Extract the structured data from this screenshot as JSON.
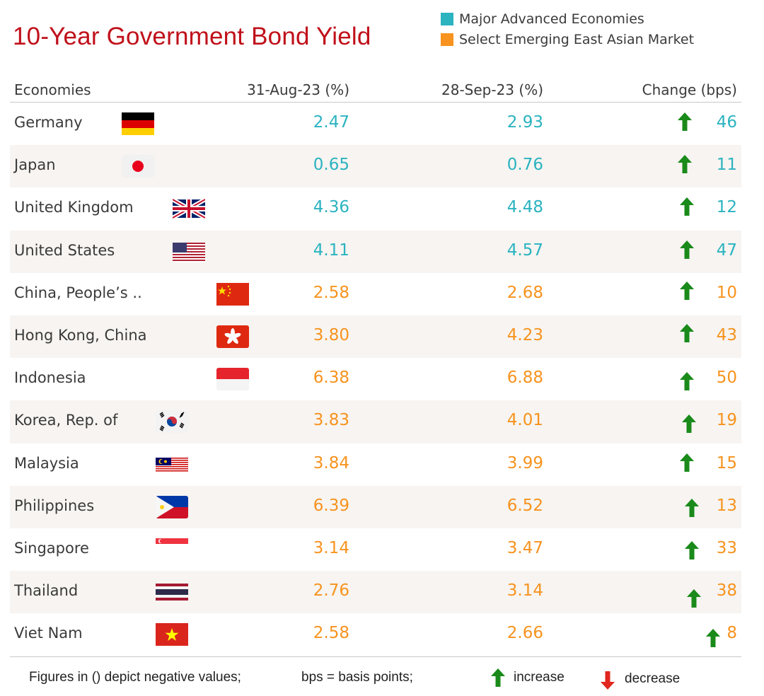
{
  "chart_data": {
    "type": "table",
    "title": "10-Year Government Bond Yield",
    "legend": [
      {
        "label": "Major Advanced Economies",
        "color": "#2bb3c0"
      },
      {
        "label": "Select Emerging East Asian Market",
        "color": "#f7931e"
      }
    ],
    "columns": [
      "Economies",
      "31-Aug-23 (%)",
      "28-Sep-23 (%)",
      "Change (bps)"
    ],
    "rows": [
      {
        "economy": "Germany",
        "flag": "germany-flag",
        "group": "advanced",
        "aug": "2.47",
        "sep": "2.93",
        "change": "46",
        "direction": "increase"
      },
      {
        "economy": "Japan",
        "flag": "japan-flag",
        "group": "advanced",
        "aug": "0.65",
        "sep": "0.76",
        "change": "11",
        "direction": "increase"
      },
      {
        "economy": "United Kingdom",
        "flag": "uk-flag",
        "group": "advanced",
        "aug": "4.36",
        "sep": "4.48",
        "change": "12",
        "direction": "increase"
      },
      {
        "economy": "United States",
        "flag": "us-flag",
        "group": "advanced",
        "aug": "4.11",
        "sep": "4.57",
        "change": "47",
        "direction": "increase"
      },
      {
        "economy": "China, People’s ..",
        "flag": "china-flag",
        "group": "emerging",
        "aug": "2.58",
        "sep": "2.68",
        "change": "10",
        "direction": "increase"
      },
      {
        "economy": "Hong Kong, China",
        "flag": "hong-kong-flag",
        "group": "emerging",
        "aug": "3.80",
        "sep": "4.23",
        "change": "43",
        "direction": "increase"
      },
      {
        "economy": "Indonesia",
        "flag": "indonesia-flag",
        "group": "emerging",
        "aug": "6.38",
        "sep": "6.88",
        "change": "50",
        "direction": "increase"
      },
      {
        "economy": "Korea, Rep. of",
        "flag": "korea-flag",
        "group": "emerging",
        "aug": "3.83",
        "sep": "4.01",
        "change": "19",
        "direction": "increase"
      },
      {
        "economy": "Malaysia",
        "flag": "malaysia-flag",
        "group": "emerging",
        "aug": "3.84",
        "sep": "3.99",
        "change": "15",
        "direction": "increase"
      },
      {
        "economy": "Philippines",
        "flag": "philippines-flag",
        "group": "emerging",
        "aug": "6.39",
        "sep": "6.52",
        "change": "13",
        "direction": "increase"
      },
      {
        "economy": "Singapore",
        "flag": "singapore-flag",
        "group": "emerging",
        "aug": "3.14",
        "sep": "3.47",
        "change": "33",
        "direction": "increase"
      },
      {
        "economy": "Thailand",
        "flag": "thailand-flag",
        "group": "emerging",
        "aug": "2.76",
        "sep": "3.14",
        "change": "38",
        "direction": "increase"
      },
      {
        "economy": "Viet Nam",
        "flag": "viet-nam-flag",
        "group": "emerging",
        "aug": "2.58",
        "sep": "2.66",
        "change": "8",
        "direction": "increase"
      }
    ]
  },
  "colors": {
    "title": "#c0101a",
    "advanced": "#2bb3c0",
    "emerging": "#f7931e",
    "increase": "#1a8a1a",
    "decrease": "#e0261e"
  },
  "footer": {
    "note_negative": "Figures in () depict negative values;",
    "note_bps": "bps = basis points;",
    "increase_label": "increase",
    "decrease_label": "decrease"
  }
}
